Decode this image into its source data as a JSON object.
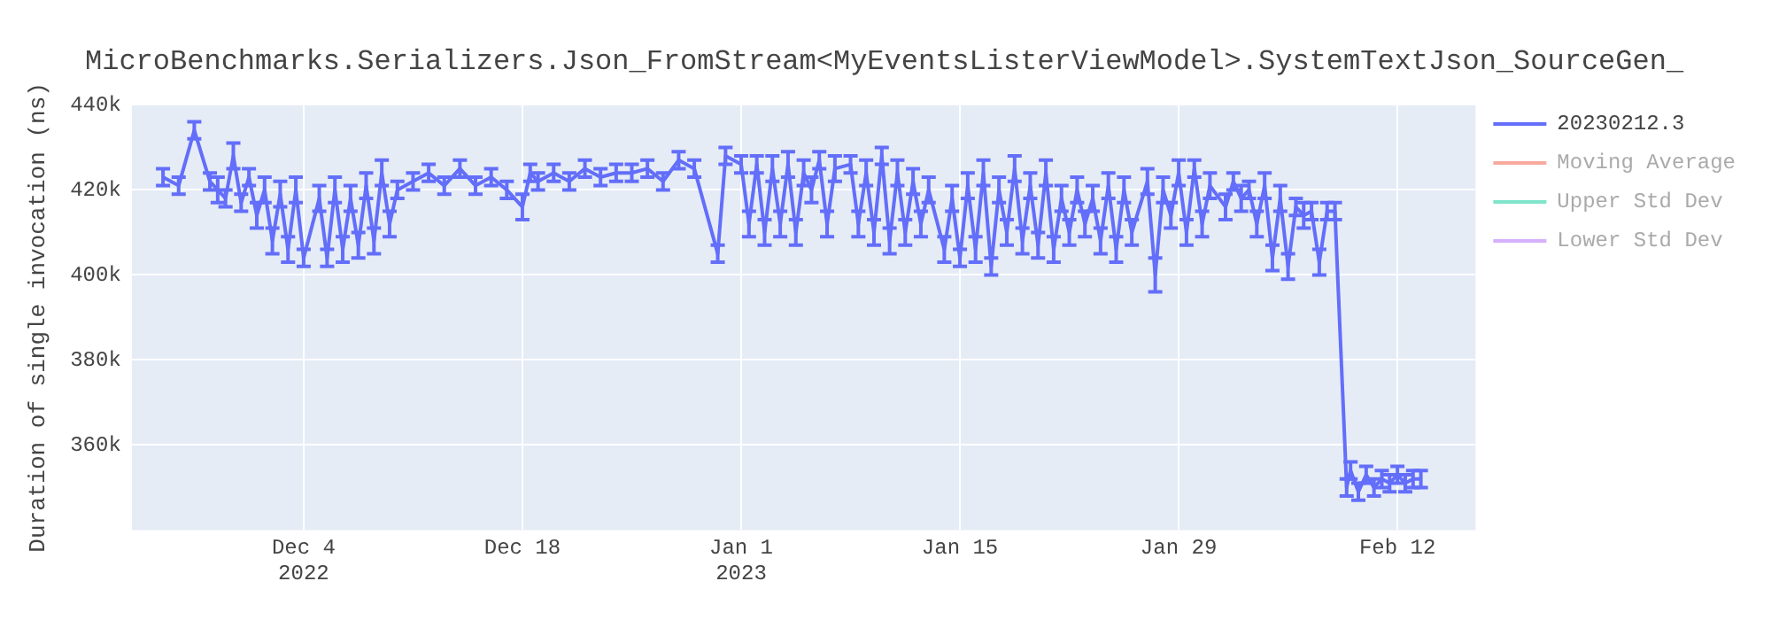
{
  "chart_data": {
    "type": "line",
    "title": "MicroBenchmarks.Serializers.Json_FromStream<MyEventsListerViewModel>.SystemTextJson_SourceGen_",
    "ylabel": "Duration of single invocation (ns)",
    "x": [
      "2022-11-25",
      "2022-11-26",
      "2022-11-27",
      "2022-11-28",
      "2022-11-28T12:00",
      "2022-11-29",
      "2022-11-29T12:00",
      "2022-11-30",
      "2022-11-30T12:00",
      "2022-12-01",
      "2022-12-01T12:00",
      "2022-12-02",
      "2022-12-02T12:00",
      "2022-12-03",
      "2022-12-03T12:00",
      "2022-12-04",
      "2022-12-05",
      "2022-12-05T12:00",
      "2022-12-06",
      "2022-12-06T12:00",
      "2022-12-07",
      "2022-12-07T12:00",
      "2022-12-08",
      "2022-12-08T12:00",
      "2022-12-09",
      "2022-12-09T12:00",
      "2022-12-10",
      "2022-12-11",
      "2022-12-12",
      "2022-12-13",
      "2022-12-14",
      "2022-12-15",
      "2022-12-16",
      "2022-12-17",
      "2022-12-18",
      "2022-12-18T12:00",
      "2022-12-19",
      "2022-12-20",
      "2022-12-21",
      "2022-12-22",
      "2022-12-23",
      "2022-12-24",
      "2022-12-25",
      "2022-12-26",
      "2022-12-27",
      "2022-12-28",
      "2022-12-29",
      "2022-12-30T12:00",
      "2022-12-31",
      "2023-01-01",
      "2023-01-01T12:00",
      "2023-01-02",
      "2023-01-02T12:00",
      "2023-01-03",
      "2023-01-03T12:00",
      "2023-01-04",
      "2023-01-04T12:00",
      "2023-01-05",
      "2023-01-05T12:00",
      "2023-01-06",
      "2023-01-06T12:00",
      "2023-01-07",
      "2023-01-08",
      "2023-01-08T12:00",
      "2023-01-09",
      "2023-01-09T12:00",
      "2023-01-10",
      "2023-01-10T12:00",
      "2023-01-11",
      "2023-01-11T12:00",
      "2023-01-12",
      "2023-01-12T12:00",
      "2023-01-13",
      "2023-01-14",
      "2023-01-14T12:00",
      "2023-01-15",
      "2023-01-15T12:00",
      "2023-01-16",
      "2023-01-16T12:00",
      "2023-01-17",
      "2023-01-17T12:00",
      "2023-01-18",
      "2023-01-18T12:00",
      "2023-01-19",
      "2023-01-19T12:00",
      "2023-01-20",
      "2023-01-20T12:00",
      "2023-01-21",
      "2023-01-21T12:00",
      "2023-01-22",
      "2023-01-22T12:00",
      "2023-01-23",
      "2023-01-23T12:00",
      "2023-01-24",
      "2023-01-24T12:00",
      "2023-01-25",
      "2023-01-25T12:00",
      "2023-01-26",
      "2023-01-27",
      "2023-01-27T12:00",
      "2023-01-28",
      "2023-01-28T12:00",
      "2023-01-29",
      "2023-01-29T12:00",
      "2023-01-30",
      "2023-01-30T12:00",
      "2023-01-31",
      "2023-02-01",
      "2023-02-01T12:00",
      "2023-02-02",
      "2023-02-02T12:00",
      "2023-02-03",
      "2023-02-03T12:00",
      "2023-02-04",
      "2023-02-04T12:00",
      "2023-02-05",
      "2023-02-05T12:00",
      "2023-02-06",
      "2023-02-06T12:00",
      "2023-02-07",
      "2023-02-07T12:00",
      "2023-02-08",
      "2023-02-08T18:00",
      "2023-02-09",
      "2023-02-09T12:00",
      "2023-02-10",
      "2023-02-10T12:00",
      "2023-02-11",
      "2023-02-11T12:00",
      "2023-02-12",
      "2023-02-12T12:00",
      "2023-02-13",
      "2023-02-13T12:00"
    ],
    "series": [
      {
        "name": "20230212.3",
        "color": "#636efa",
        "values": [
          423000,
          421000,
          434000,
          422000,
          420000,
          418000,
          428000,
          417000,
          423000,
          414000,
          420000,
          408000,
          419000,
          406000,
          420000,
          404000,
          418000,
          404000,
          420000,
          406000,
          418000,
          407000,
          421000,
          408000,
          424000,
          412000,
          420000,
          422000,
          424000,
          421000,
          425000,
          421000,
          423000,
          420000,
          416000,
          424000,
          422000,
          424000,
          422000,
          425000,
          423000,
          424000,
          424000,
          425000,
          422000,
          427000,
          425000,
          405000,
          428000,
          426000,
          412000,
          426000,
          410000,
          425000,
          412000,
          426000,
          410000,
          424000,
          420000,
          427000,
          412000,
          425000,
          426000,
          412000,
          424000,
          410000,
          428000,
          408000,
          424000,
          410000,
          422000,
          412000,
          420000,
          406000,
          418000,
          404000,
          421000,
          406000,
          424000,
          402000,
          420000,
          410000,
          425000,
          408000,
          421000,
          407000,
          424000,
          406000,
          418000,
          410000,
          420000,
          412000,
          418000,
          408000,
          421000,
          406000,
          420000,
          410000,
          422000,
          400000,
          420000,
          414000,
          424000,
          410000,
          425000,
          412000,
          421000,
          416000,
          422000,
          418000,
          420000,
          412000,
          421000,
          404000,
          418000,
          402000,
          416000,
          414000,
          415000,
          403000,
          415000,
          415000,
          350000,
          354000,
          349000,
          353000,
          350000,
          352000,
          351000,
          353000,
          351000,
          352000,
          352000
        ],
        "errors": [
          2000,
          2000,
          2000,
          2000,
          3000,
          2000,
          3000,
          2000,
          2000,
          3000,
          3000,
          3000,
          3000,
          3000,
          3000,
          2000,
          3000,
          2000,
          3000,
          3000,
          3000,
          3000,
          3000,
          3000,
          3000,
          3000,
          2000,
          2000,
          2000,
          2000,
          2000,
          2000,
          2000,
          2000,
          3000,
          2000,
          2000,
          2000,
          2000,
          2000,
          2000,
          2000,
          2000,
          2000,
          2000,
          2000,
          2000,
          2000,
          2000,
          2000,
          3000,
          2000,
          3000,
          3000,
          3000,
          3000,
          3000,
          3000,
          3000,
          2000,
          3000,
          3000,
          2000,
          3000,
          3000,
          3000,
          2000,
          3000,
          3000,
          3000,
          3000,
          3000,
          3000,
          3000,
          3000,
          2000,
          3000,
          3000,
          3000,
          2000,
          3000,
          3000,
          3000,
          3000,
          3000,
          3000,
          3000,
          3000,
          3000,
          3000,
          3000,
          3000,
          3000,
          3000,
          3000,
          3000,
          3000,
          3000,
          3000,
          4000,
          3000,
          3000,
          3000,
          3000,
          2000,
          3000,
          3000,
          3000,
          2000,
          3000,
          2000,
          3000,
          3000,
          3000,
          3000,
          3000,
          2000,
          3000,
          2000,
          3000,
          2000,
          2000,
          2000,
          2000,
          2000,
          2000,
          2000,
          2000,
          2000,
          2000,
          2000,
          2000,
          2000
        ]
      },
      {
        "name": "Moving Average",
        "color": "#ef553b",
        "values": [
          null,
          null,
          null,
          null,
          null,
          null,
          null,
          null,
          null,
          null,
          null,
          null,
          null,
          null,
          null,
          null,
          null,
          null,
          null,
          null,
          null,
          null,
          null,
          null,
          null,
          null,
          null,
          null,
          null,
          null,
          null,
          null,
          null,
          null,
          null,
          null,
          null,
          null,
          null,
          null,
          null,
          null,
          null,
          null,
          null,
          null,
          null,
          null,
          null,
          null,
          null,
          null,
          null,
          null,
          null,
          null,
          null,
          null,
          null,
          null,
          null,
          null,
          null,
          null,
          null,
          null,
          null,
          null,
          null,
          null,
          null,
          null,
          null,
          null,
          null,
          null,
          null,
          null,
          null,
          null,
          null,
          null,
          null,
          null,
          null,
          null,
          null,
          null,
          null,
          null,
          null,
          null,
          null,
          null,
          null,
          null,
          null,
          null,
          null,
          null,
          null,
          null,
          null,
          null,
          null,
          null,
          null,
          null,
          null,
          null,
          null,
          null,
          null,
          null,
          null,
          null,
          null,
          null,
          null,
          null,
          null,
          null,
          null,
          null,
          null,
          null,
          null,
          null,
          null,
          null,
          null,
          null,
          null
        ]
      },
      {
        "name": "Upper Std Dev",
        "color": "#00cc96",
        "values": [
          null,
          null,
          null,
          null,
          null,
          null,
          null,
          null,
          null,
          null,
          null,
          null,
          null,
          null,
          null,
          null,
          null,
          null,
          null,
          null,
          null,
          null,
          null,
          null,
          null,
          null,
          null,
          null,
          null,
          null,
          null,
          null,
          null,
          null,
          null,
          null,
          null,
          null,
          null,
          null,
          null,
          null,
          null,
          null,
          null,
          null,
          null,
          null,
          null,
          null,
          null,
          null,
          null,
          null,
          null,
          null,
          null,
          null,
          null,
          null,
          null,
          null,
          null,
          null,
          null,
          null,
          null,
          null,
          null,
          null,
          null,
          null,
          null,
          null,
          null,
          null,
          null,
          null,
          null,
          null,
          null,
          null,
          null,
          null,
          null,
          null,
          null,
          null,
          null,
          null,
          null,
          null,
          null,
          null,
          null,
          null,
          null,
          null,
          null,
          null,
          null,
          null,
          null,
          null,
          null,
          null,
          null,
          null,
          null,
          null,
          null,
          null,
          null,
          null,
          null,
          null,
          null,
          null,
          null,
          null,
          null,
          null,
          null,
          null,
          null,
          null,
          null,
          null,
          null,
          null,
          null,
          null,
          null
        ]
      },
      {
        "name": "Lower Std Dev",
        "color": "#ab63fa",
        "values": [
          null,
          null,
          null,
          null,
          null,
          null,
          null,
          null,
          null,
          null,
          null,
          null,
          null,
          null,
          null,
          null,
          null,
          null,
          null,
          null,
          null,
          null,
          null,
          null,
          null,
          null,
          null,
          null,
          null,
          null,
          null,
          null,
          null,
          null,
          null,
          null,
          null,
          null,
          null,
          null,
          null,
          null,
          null,
          null,
          null,
          null,
          null,
          null,
          null,
          null,
          null,
          null,
          null,
          null,
          null,
          null,
          null,
          null,
          null,
          null,
          null,
          null,
          null,
          null,
          null,
          null,
          null,
          null,
          null,
          null,
          null,
          null,
          null,
          null,
          null,
          null,
          null,
          null,
          null,
          null,
          null,
          null,
          null,
          null,
          null,
          null,
          null,
          null,
          null,
          null,
          null,
          null,
          null,
          null,
          null,
          null,
          null,
          null,
          null,
          null,
          null,
          null,
          null,
          null,
          null,
          null,
          null,
          null,
          null,
          null,
          null,
          null,
          null,
          null,
          null,
          null,
          null,
          null,
          null,
          null,
          null,
          null,
          null,
          null,
          null,
          null,
          null,
          null,
          null,
          null,
          null,
          null,
          null
        ]
      }
    ],
    "xlim": [
      "2022-11-23",
      "2023-02-17"
    ],
    "xticks": [
      {
        "value": "2022-12-04",
        "label": "Dec 4\n2022"
      },
      {
        "value": "2022-12-18",
        "label": "Dec 18"
      },
      {
        "value": "2023-01-01",
        "label": "Jan 1\n2023"
      },
      {
        "value": "2023-01-15",
        "label": "Jan 15"
      },
      {
        "value": "2023-01-29",
        "label": "Jan 29"
      },
      {
        "value": "2023-02-12",
        "label": "Feb 12"
      }
    ],
    "ylim": [
      340000,
      440000
    ],
    "yticks": [
      {
        "value": 360000,
        "label": "360k"
      },
      {
        "value": 380000,
        "label": "380k"
      },
      {
        "value": 400000,
        "label": "400k"
      },
      {
        "value": 420000,
        "label": "420k"
      },
      {
        "value": 440000,
        "label": "440k"
      }
    ],
    "grid": true,
    "legend": "top right",
    "marker": "none"
  }
}
